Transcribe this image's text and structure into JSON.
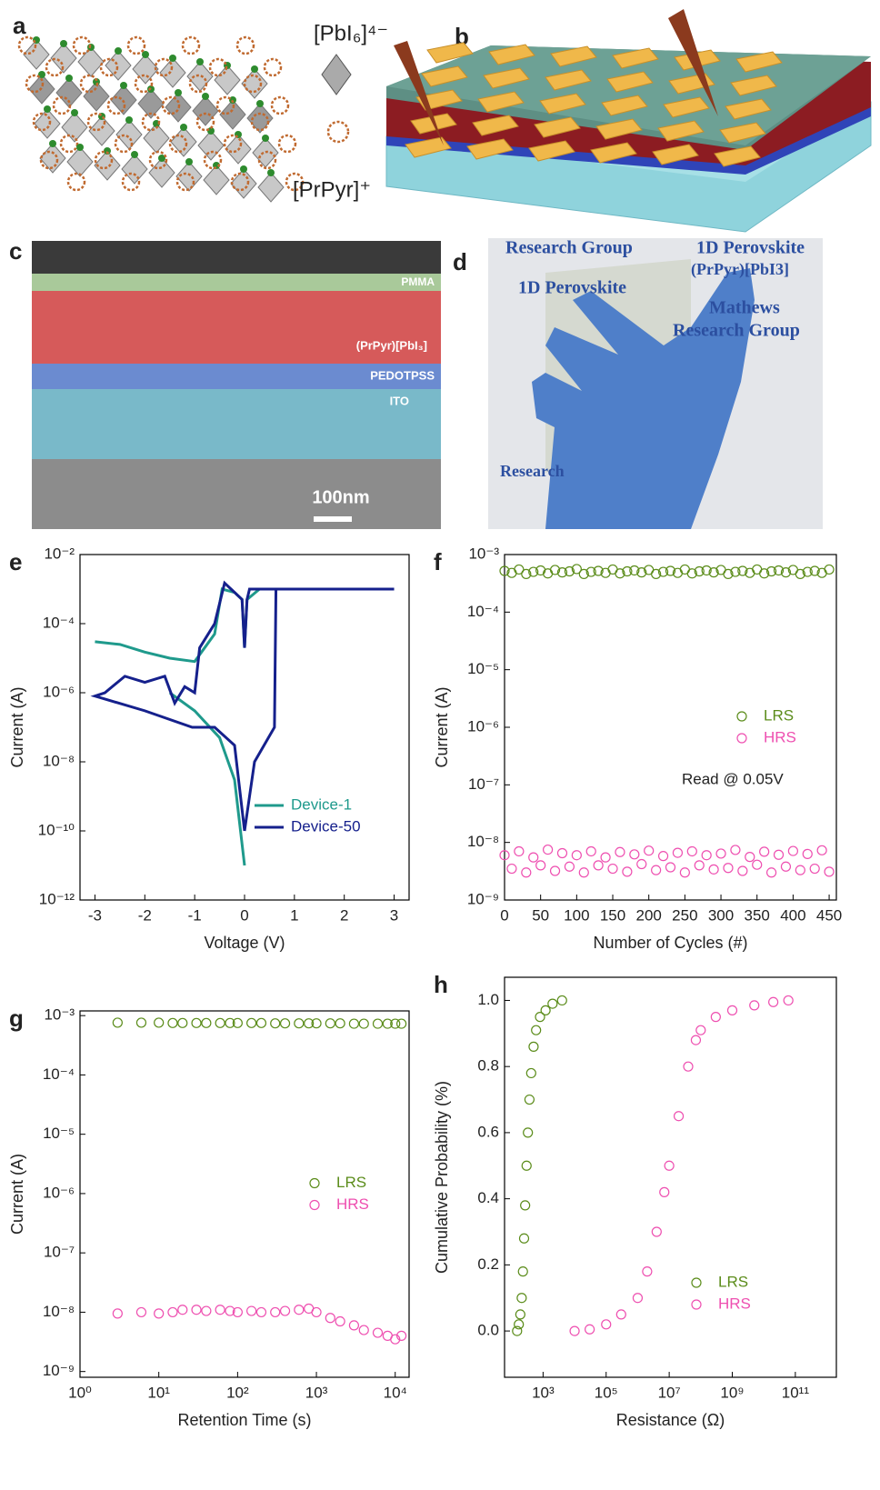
{
  "figures": [
    {
      "label": "a",
      "texts": [
        "[PbI₆]⁴⁻",
        "[PrPyr]⁺"
      ]
    },
    {
      "label": "b"
    },
    {
      "label": "c",
      "texts": [
        "PMMA",
        "(PrPyr)[PbI₃]",
        "PEDOTPSS",
        "ITO",
        "100nm"
      ]
    },
    {
      "label": "d",
      "texts": [
        "Research Group",
        "1D Perovskite",
        "(PrPyr)[PbI3]",
        "1D Perovskite",
        "Mathews",
        "Research Group",
        "Research"
      ]
    }
  ],
  "chart_data": [
    {
      "type": "line",
      "label": "e",
      "xlabel": "Voltage (V)",
      "ylabel": "Current (A)",
      "ylog": true,
      "legend": "lower right",
      "xlim": [
        -3.3,
        3.3
      ],
      "xticks": [
        -3,
        -2,
        -1,
        0,
        1,
        2,
        3
      ],
      "ylim": [
        1e-12,
        0.01
      ],
      "yticks": [
        {
          "value": 1e-12,
          "label": "10⁻¹²"
        },
        {
          "value": 1e-10,
          "label": "10⁻¹⁰"
        },
        {
          "value": 1e-08,
          "label": "10⁻⁸"
        },
        {
          "value": 1e-06,
          "label": "10⁻⁶"
        },
        {
          "value": 0.0001,
          "label": "10⁻⁴"
        },
        {
          "value": 0.01,
          "label": "10⁻²"
        }
      ],
      "series": [
        {
          "name": "Device-1",
          "color": "#1f9a8c",
          "x": [
            0,
            -0.2,
            -0.5,
            -1,
            -1.5,
            null,
            -3,
            -2.5,
            -2,
            -1.5,
            -1,
            -0.8,
            -0.6,
            -0.45,
            -0.2,
            -0.05,
            0,
            0.05,
            0.3
          ],
          "values": [
            1e-11,
            3e-09,
            5e-08,
            3e-07,
            1e-06,
            null,
            3e-05,
            2.5e-05,
            1.5e-05,
            1e-05,
            8e-06,
            2e-05,
            5e-05,
            0.001,
            0.0008,
            0.0005,
            2e-05,
            0.0005,
            0.001
          ]
        },
        {
          "name": "Device-50",
          "color": "#15208c",
          "x": [
            0,
            0.2,
            0.6,
            0.63,
            3,
            0.1,
            0.05,
            0,
            -0.05,
            -0.4,
            -0.6,
            -0.9,
            -1.0,
            -1.2,
            -1.4,
            -1.6,
            -2,
            -2.4,
            -2.8,
            -3,
            -2,
            -1.05,
            -0.6,
            -0.2,
            0
          ],
          "values": [
            1e-10,
            1e-08,
            1e-07,
            0.001,
            0.001,
            0.001,
            0.0005,
            2e-05,
            0.0005,
            0.0015,
            0.0001,
            2e-05,
            1e-06,
            1.5e-06,
            5e-07,
            3e-06,
            2e-06,
            3e-06,
            1e-06,
            8e-07,
            3e-07,
            1e-07,
            1e-07,
            3e-08,
            1e-10
          ]
        }
      ]
    },
    {
      "type": "scatter",
      "label": "f",
      "xlabel": "Number of Cycles (#)",
      "ylabel": "Current (A)",
      "ylog": true,
      "legend": "center right",
      "annotation": "Read @ 0.05V",
      "xlim": [
        0,
        460
      ],
      "xticks": [
        0,
        50,
        100,
        150,
        200,
        250,
        300,
        350,
        400,
        450
      ],
      "ylim": [
        1e-09,
        0.001
      ],
      "yticks": [
        {
          "value": 1e-09,
          "label": "10⁻⁹"
        },
        {
          "value": 1e-08,
          "label": "10⁻⁸"
        },
        {
          "value": 1e-07,
          "label": "10⁻⁷"
        },
        {
          "value": 1e-06,
          "label": "10⁻⁶"
        },
        {
          "value": 1e-05,
          "label": "10⁻⁵"
        },
        {
          "value": 0.0001,
          "label": "10⁻⁴"
        },
        {
          "value": 0.001,
          "label": "10⁻³"
        }
      ],
      "x": [
        0,
        10,
        20,
        30,
        40,
        50,
        60,
        70,
        80,
        90,
        100,
        110,
        120,
        130,
        140,
        150,
        160,
        170,
        180,
        190,
        200,
        210,
        220,
        230,
        240,
        250,
        260,
        270,
        280,
        290,
        300,
        310,
        320,
        330,
        340,
        350,
        360,
        370,
        380,
        390,
        400,
        410,
        420,
        430,
        440,
        450
      ],
      "series": [
        {
          "name": "LRS",
          "color": "#5b8c1a",
          "values": [
            0.00052,
            0.00048,
            0.00055,
            0.00046,
            0.0005,
            0.00053,
            0.00047,
            0.00054,
            0.00049,
            0.00051,
            0.00056,
            0.00046,
            0.0005,
            0.00052,
            0.00048,
            0.00055,
            0.00047,
            0.00051,
            0.00053,
            0.00049,
            0.00054,
            0.00046,
            0.0005,
            0.00052,
            0.00048,
            0.00055,
            0.00047,
            0.00051,
            0.00053,
            0.00049,
            0.00054,
            0.00046,
            0.0005,
            0.00052,
            0.00048,
            0.00055,
            0.00047,
            0.00051,
            0.00053,
            0.00049,
            0.00054,
            0.00046,
            0.0005,
            0.00052,
            0.00048,
            0.00055
          ]
        },
        {
          "name": "HRS",
          "color": "#ee4fb0",
          "values": [
            6e-09,
            3.5e-09,
            7e-09,
            3e-09,
            5.5e-09,
            4e-09,
            7.5e-09,
            3.2e-09,
            6.5e-09,
            3.8e-09,
            6e-09,
            3e-09,
            7e-09,
            4e-09,
            5.5e-09,
            3.5e-09,
            6.8e-09,
            3.1e-09,
            6.2e-09,
            4.2e-09,
            7.2e-09,
            3.3e-09,
            5.8e-09,
            3.7e-09,
            6.6e-09,
            3e-09,
            7e-09,
            4e-09,
            6e-09,
            3.4e-09,
            6.4e-09,
            3.6e-09,
            7.4e-09,
            3.2e-09,
            5.6e-09,
            4.1e-09,
            6.9e-09,
            3e-09,
            6.1e-09,
            3.8e-09,
            7.1e-09,
            3.3e-09,
            6.3e-09,
            3.5e-09,
            7.3e-09,
            3.1e-09
          ]
        }
      ]
    },
    {
      "type": "scatter",
      "label": "g",
      "xlabel": "Retention Time (s)",
      "ylabel": "Current (A)",
      "xlog": true,
      "ylog": true,
      "legend": "center right",
      "xlim": [
        1,
        15000
      ],
      "xticks": [
        {
          "value": 1,
          "label": "10⁰"
        },
        {
          "value": 10,
          "label": "10¹"
        },
        {
          "value": 100,
          "label": "10²"
        },
        {
          "value": 1000,
          "label": "10³"
        },
        {
          "value": 10000,
          "label": "10⁴"
        }
      ],
      "ylim": [
        8e-10,
        0.0012
      ],
      "yticks": [
        {
          "value": 1e-09,
          "label": "10⁻⁹"
        },
        {
          "value": 1e-08,
          "label": "10⁻⁸"
        },
        {
          "value": 1e-07,
          "label": "10⁻⁷"
        },
        {
          "value": 1e-06,
          "label": "10⁻⁶"
        },
        {
          "value": 1e-05,
          "label": "10⁻⁵"
        },
        {
          "value": 0.0001,
          "label": "10⁻⁴"
        },
        {
          "value": 0.001,
          "label": "10⁻³"
        }
      ],
      "x": [
        3,
        6,
        10,
        15,
        20,
        30,
        40,
        60,
        80,
        100,
        150,
        200,
        300,
        400,
        600,
        800,
        1000,
        1500,
        2000,
        3000,
        4000,
        6000,
        8000,
        10000,
        12000
      ],
      "series": [
        {
          "name": "LRS",
          "color": "#5b8c1a",
          "values": [
            0.00076,
            0.00076,
            0.00076,
            0.00075,
            0.00075,
            0.00075,
            0.00075,
            0.00075,
            0.00075,
            0.00075,
            0.00075,
            0.00075,
            0.00074,
            0.00074,
            0.00074,
            0.00074,
            0.00074,
            0.00074,
            0.00074,
            0.00073,
            0.00073,
            0.00073,
            0.00073,
            0.00073,
            0.00073
          ]
        },
        {
          "name": "HRS",
          "color": "#ee4fb0",
          "values": [
            9.5e-09,
            1e-08,
            9.5e-09,
            1e-08,
            1.1e-08,
            1.1e-08,
            1.05e-08,
            1.1e-08,
            1.05e-08,
            1e-08,
            1.05e-08,
            1e-08,
            1e-08,
            1.05e-08,
            1.1e-08,
            1.15e-08,
            1e-08,
            8e-09,
            7e-09,
            6e-09,
            5e-09,
            4.5e-09,
            4e-09,
            3.5e-09,
            4e-09
          ]
        }
      ]
    },
    {
      "type": "scatter",
      "label": "h",
      "xlabel": "Resistance (Ω)",
      "ylabel": "Cumulative Probability (%)",
      "xlog": true,
      "legend": "lower right",
      "xlim": [
        60,
        2000000000000
      ],
      "xticks": [
        {
          "value": 1000,
          "label": "10³"
        },
        {
          "value": 100000,
          "label": "10⁵"
        },
        {
          "value": 10000000,
          "label": "10⁷"
        },
        {
          "value": 1000000000,
          "label": "10⁹"
        },
        {
          "value": 100000000000,
          "label": "10¹¹"
        }
      ],
      "ylim": [
        -0.14,
        1.07
      ],
      "yticks": [
        {
          "value": 0,
          "label": "0.0"
        },
        0.2,
        0.4,
        0.6,
        0.8,
        {
          "value": 1,
          "label": "1.0"
        }
      ],
      "series": [
        {
          "name": "LRS",
          "color": "#5b8c1a",
          "x": [
            150,
            170,
            190,
            210,
            230,
            250,
            270,
            300,
            330,
            370,
            420,
            500,
            600,
            800,
            1200,
            2000,
            4000
          ],
          "values": [
            0,
            0.02,
            0.05,
            0.1,
            0.18,
            0.28,
            0.38,
            0.5,
            0.6,
            0.7,
            0.78,
            0.86,
            0.91,
            0.95,
            0.97,
            0.99,
            1
          ]
        },
        {
          "name": "HRS",
          "color": "#ee4fb0",
          "x": [
            10000,
            30000,
            100000,
            300000,
            1000000,
            2000000,
            4000000,
            7000000,
            10000000,
            20000000,
            40000000,
            70000000,
            100000000,
            300000000,
            1000000000,
            5000000000,
            20000000000,
            60000000000
          ],
          "values": [
            0,
            0.005,
            0.02,
            0.05,
            0.1,
            0.18,
            0.3,
            0.42,
            0.5,
            0.65,
            0.8,
            0.88,
            0.91,
            0.95,
            0.97,
            0.985,
            0.995,
            1
          ]
        }
      ]
    }
  ]
}
